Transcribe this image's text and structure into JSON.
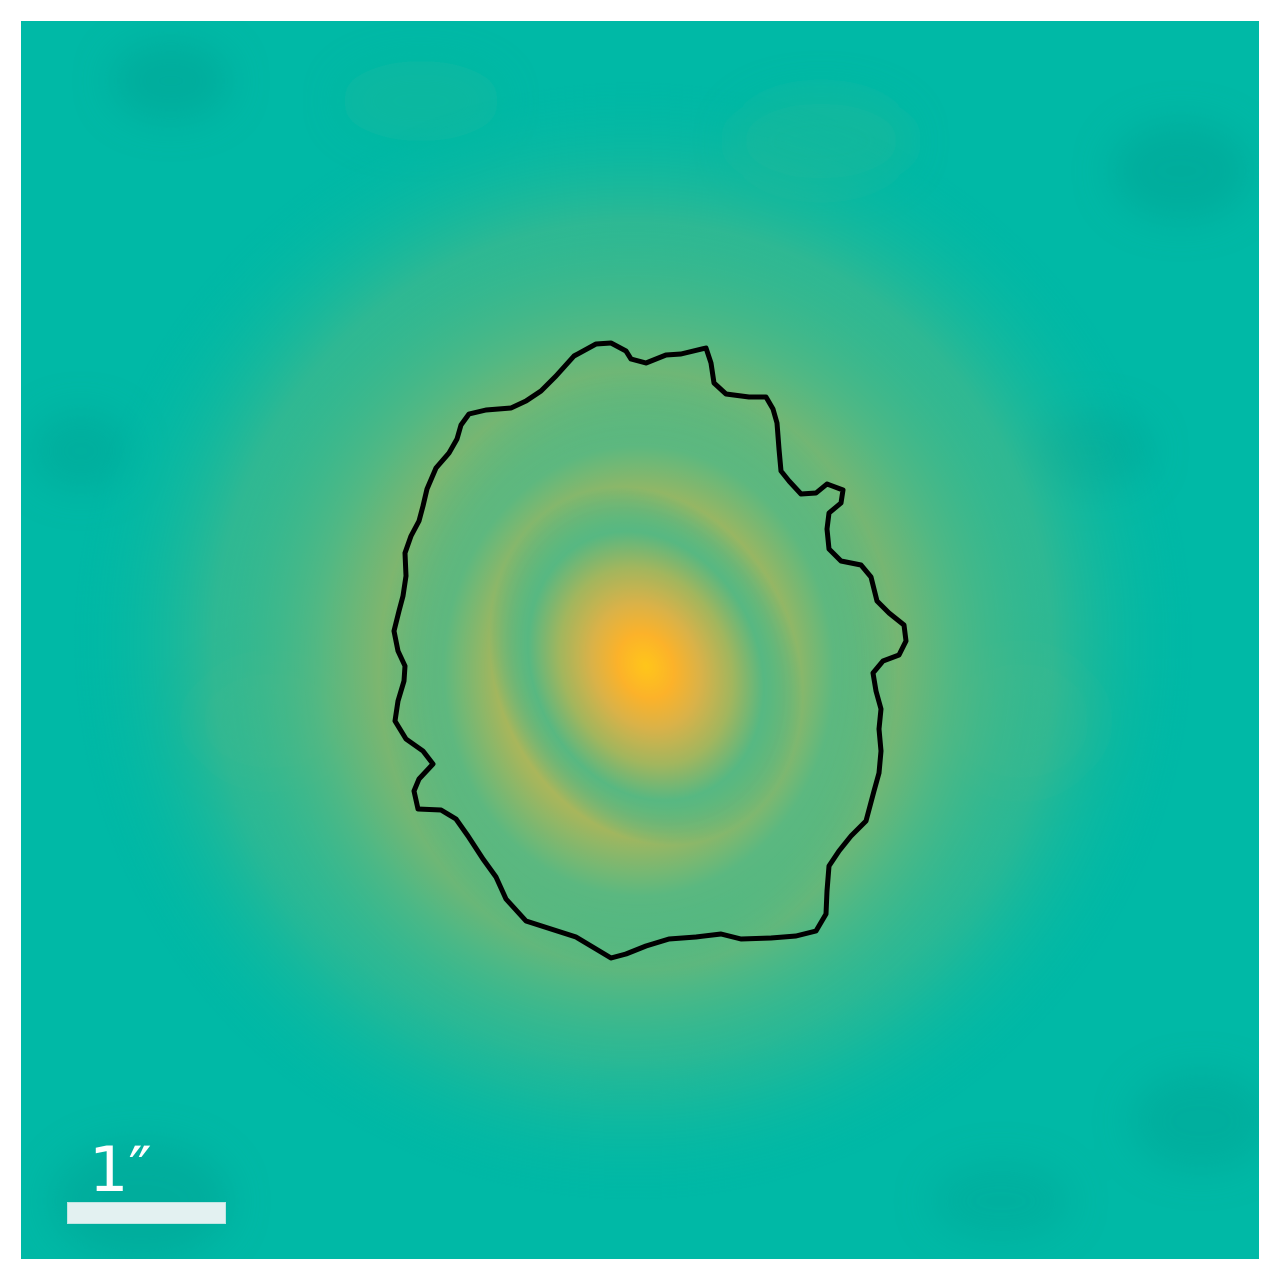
{
  "image": {
    "description_kind": "astronomical-source-map",
    "colors": {
      "background": "#00b9a6",
      "core": "#ffc41a",
      "contour": "#000000",
      "scalebar": "#e3f1f1"
    }
  },
  "scalebar": {
    "label": "1″"
  }
}
